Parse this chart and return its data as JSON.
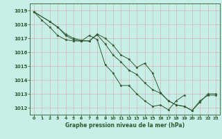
{
  "title": "Graphe pression niveau de la mer (hPa)",
  "background_color": "#c8eee8",
  "grid_color": "#b0c8c4",
  "line_color": "#2d5a2d",
  "xlim": [
    -0.5,
    23.5
  ],
  "ylim": [
    1011.5,
    1019.5
  ],
  "xticks": [
    0,
    1,
    2,
    3,
    4,
    5,
    6,
    7,
    8,
    9,
    10,
    11,
    12,
    13,
    14,
    15,
    16,
    17,
    18,
    19,
    20,
    21,
    22,
    23
  ],
  "yticks": [
    1012,
    1013,
    1014,
    1015,
    1016,
    1017,
    1018,
    1019
  ],
  "series1": [
    1018.9,
    1018.3,
    1017.8,
    1017.2,
    1016.9,
    1016.8,
    1016.8,
    1017.2,
    1016.9,
    1015.1,
    1014.5,
    1013.6,
    1013.6,
    1013.0,
    1012.5,
    1012.1,
    1012.2,
    1011.85,
    1012.5,
    1012.9,
    null,
    null,
    null,
    null
  ],
  "series2": [
    1018.9,
    null,
    1018.2,
    1017.8,
    1017.2,
    1016.9,
    1016.8,
    1016.8,
    1017.3,
    1017.0,
    1016.5,
    1015.8,
    1015.5,
    1014.9,
    1015.2,
    1014.5,
    1013.1,
    1012.5,
    1012.2,
    1012.1,
    1011.8,
    1012.5,
    1012.9,
    1012.9
  ],
  "series3": [
    1018.9,
    null,
    1018.2,
    1017.8,
    1017.3,
    1017.0,
    1016.85,
    1016.8,
    1017.25,
    1016.6,
    1015.8,
    1015.3,
    1014.7,
    1014.4,
    1013.8,
    1013.3,
    1013.05,
    1012.5,
    1012.2,
    1012.1,
    1011.8,
    1012.4,
    1013.0,
    1013.0
  ]
}
